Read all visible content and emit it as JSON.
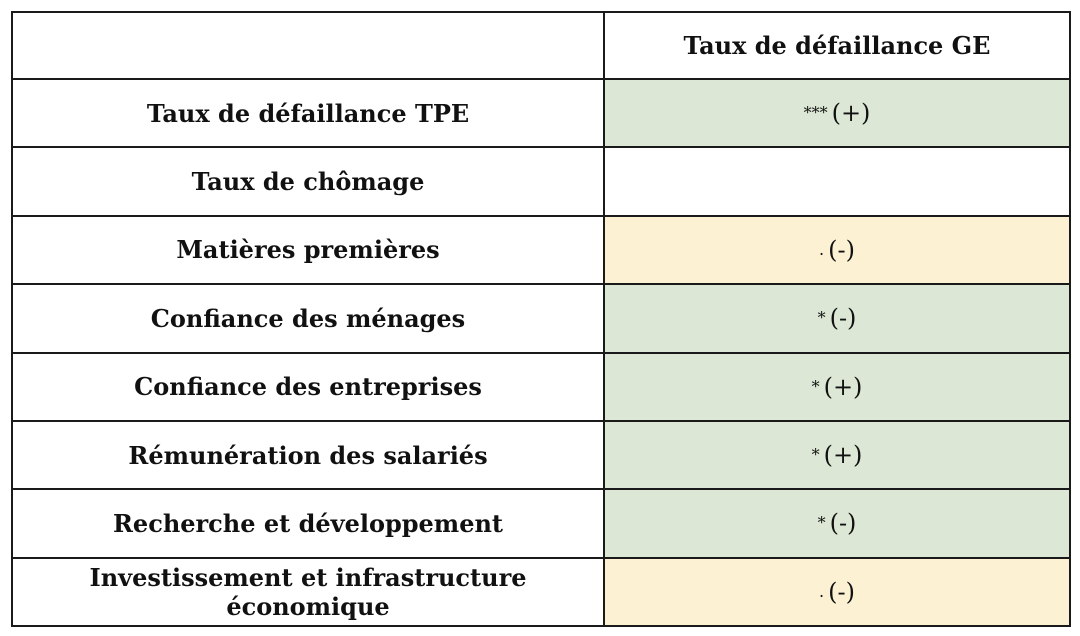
{
  "table": {
    "header": {
      "corner": "",
      "column": "Taux de défaillance GE"
    },
    "rows": [
      {
        "label": "Taux de défaillance TPE",
        "sig": "***",
        "sign": "(+)",
        "color": "#dce8d5"
      },
      {
        "label": "Taux de chômage",
        "sig": "",
        "sign": "",
        "color": "#ffffff"
      },
      {
        "label": "Matières premières",
        "sig": ".",
        "sign": "(-)",
        "color": "#fcf1d2"
      },
      {
        "label": "Confiance des ménages",
        "sig": "*",
        "sign": "(-)",
        "color": "#dce8d5"
      },
      {
        "label": "Confiance des entreprises",
        "sig": "*",
        "sign": "(+)",
        "color": "#dce8d5"
      },
      {
        "label": "Rémunération des salariés",
        "sig": "*",
        "sign": "(+)",
        "color": "#dce8d5"
      },
      {
        "label": "Recherche et développement",
        "sig": "*",
        "sign": "(-)",
        "color": "#dce8d5"
      },
      {
        "label": "Investissement et infrastructure économique",
        "sig": ".",
        "sign": "(-)",
        "color": "#fcf1d2"
      }
    ]
  }
}
